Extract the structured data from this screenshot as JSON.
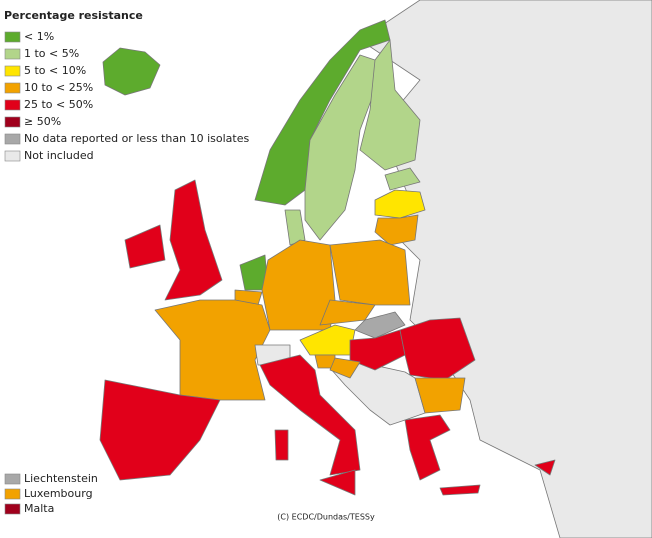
{
  "legend": {
    "title": "Percentage resistance",
    "items": [
      {
        "label": "< 1%",
        "color": "#5dab2d"
      },
      {
        "label": "1 to < 5%",
        "color": "#b2d58a"
      },
      {
        "label": "5 to < 10%",
        "color": "#ffe500"
      },
      {
        "label": "10 to < 25%",
        "color": "#f2a200"
      },
      {
        "label": "25 to < 50%",
        "color": "#e1001a"
      },
      {
        "label": "≥ 50%",
        "color": "#a0001c"
      },
      {
        "label": "No data reported or less than 10 isolates",
        "color": "#a8a8a8"
      },
      {
        "label": "Not included",
        "color": "#e9e9e9"
      }
    ]
  },
  "small_states": [
    {
      "label": "Liechtenstein",
      "color": "#a8a8a8"
    },
    {
      "label": "Luxembourg",
      "color": "#f2a200"
    },
    {
      "label": "Malta",
      "color": "#a0001c"
    }
  ],
  "credit": "(C) ECDC/Dundas/TESSy"
}
